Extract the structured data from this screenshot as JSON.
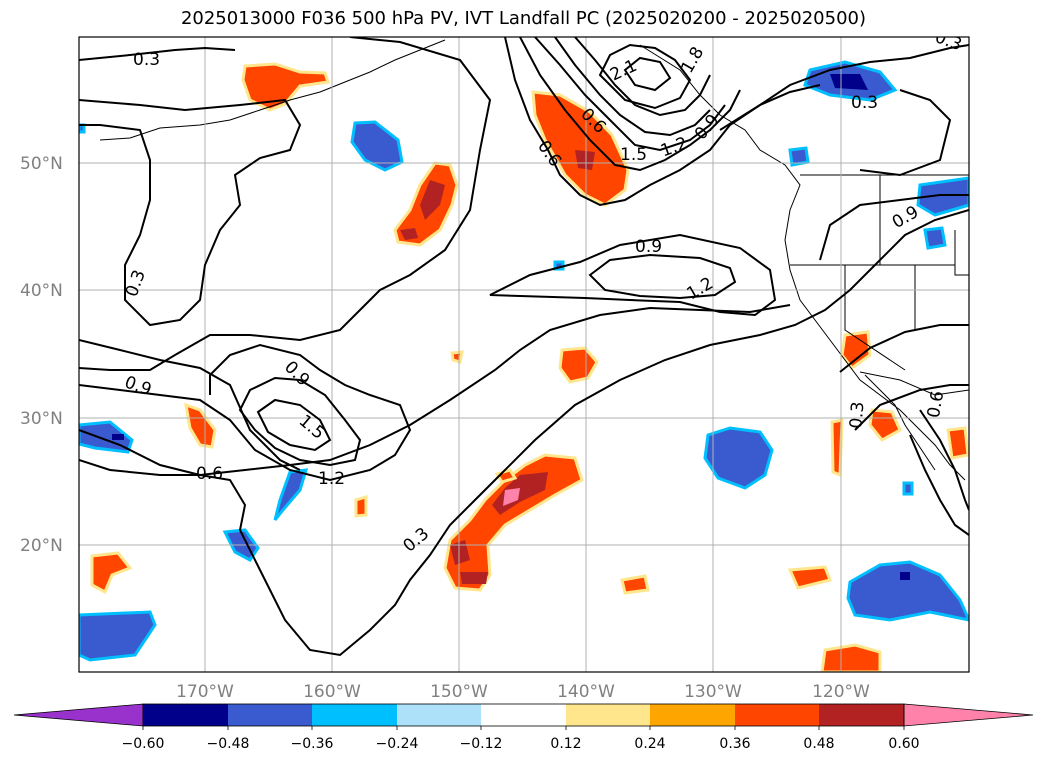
{
  "title": "2025013000 F036 500 hPa PV, IVT Landfall PC (2025020200 - 2025020500)",
  "lat_labels": [
    "50°N",
    "40°N",
    "30°N",
    "20°N"
  ],
  "lon_labels": [
    "170°W",
    "160°W",
    "150°W",
    "140°W",
    "130°W",
    "120°W"
  ],
  "colorbar": {
    "tick_labels": [
      "−0.60",
      "−0.48",
      "−0.36",
      "−0.24",
      "−0.12",
      "0.12",
      "0.24",
      "0.36",
      "0.48",
      "0.60"
    ],
    "colors": [
      "#9932CC",
      "#00008B",
      "#3A5BCF",
      "#00BFFF",
      "#ADE1FA",
      "#FFFFFF",
      "#FFE68C",
      "#FFA500",
      "#FF4500",
      "#B22222",
      "#FF82AB"
    ]
  },
  "contour_labels": [
    "0.3",
    "0.3",
    "0.3",
    "0.3",
    "0.3",
    "0.3",
    "0.6",
    "0.6",
    "0.6",
    "0.9",
    "0.9",
    "0.9",
    "0.9",
    "1.2",
    "1.2",
    "1.2",
    "1.5",
    "1.5",
    "2.1",
    "1.8",
    "0.6",
    "0.9"
  ],
  "colors": {
    "positive": "#FF4500",
    "negative": "#3A5BCF"
  }
}
